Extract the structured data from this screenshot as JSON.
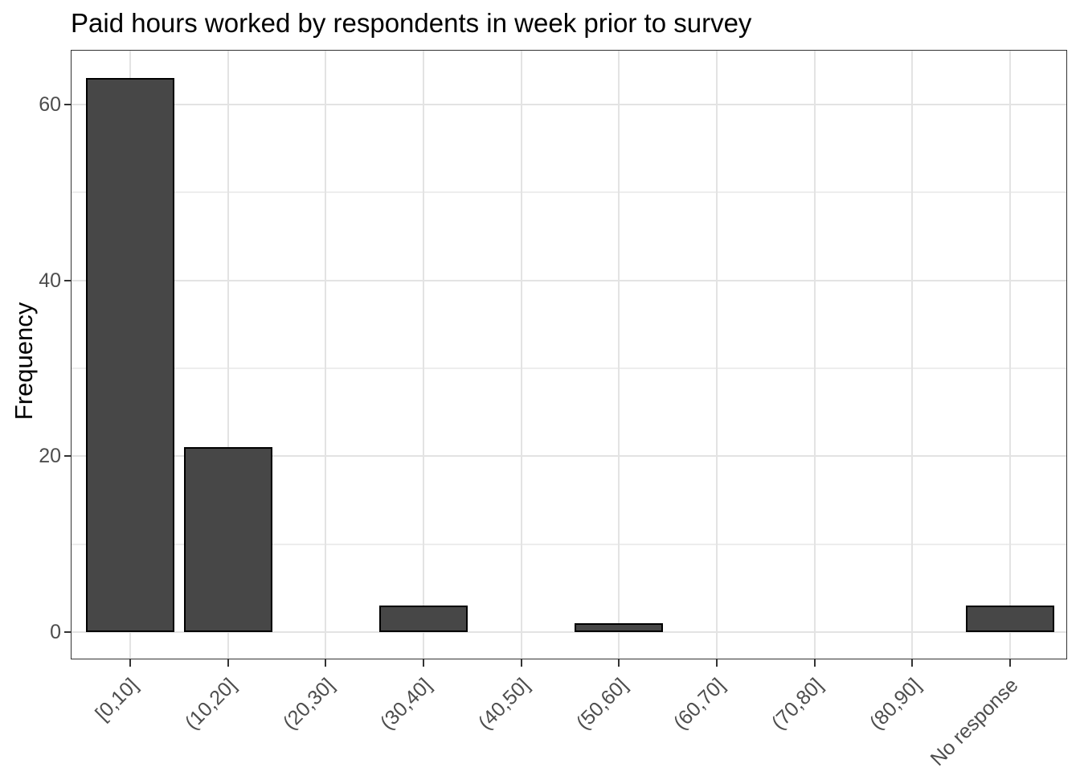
{
  "chart_data": {
    "type": "bar",
    "title": "Paid hours worked by respondents in week prior to survey",
    "ylabel": "Frequency",
    "xlabel": "",
    "categories": [
      "[0,10]",
      "(10,20]",
      "(20,30]",
      "(30,40]",
      "(40,50]",
      "(50,60]",
      "(60,70]",
      "(70,80]",
      "(80,90]",
      "No response"
    ],
    "values": [
      63,
      21,
      0,
      3,
      0,
      1,
      0,
      0,
      0,
      3
    ],
    "y_major_ticks": [
      0,
      20,
      40,
      60
    ],
    "y_minor_gridlines": [
      10,
      30,
      50
    ],
    "ylim": [
      -3.2,
      66.2
    ],
    "grid": "major-and-minor-horizontal, major-vertical-at-category-centers",
    "legend": "none",
    "x_label_angle_deg": 45,
    "colors": {
      "bar_fill": "#474747",
      "bar_stroke": "#000000",
      "grid_major": "#E3E3E3",
      "grid_minor": "#EDEDED",
      "panel_border": "#333333",
      "axis_text": "#4D4D4D",
      "title_text": "#000000",
      "background": "#FFFFFF"
    }
  }
}
